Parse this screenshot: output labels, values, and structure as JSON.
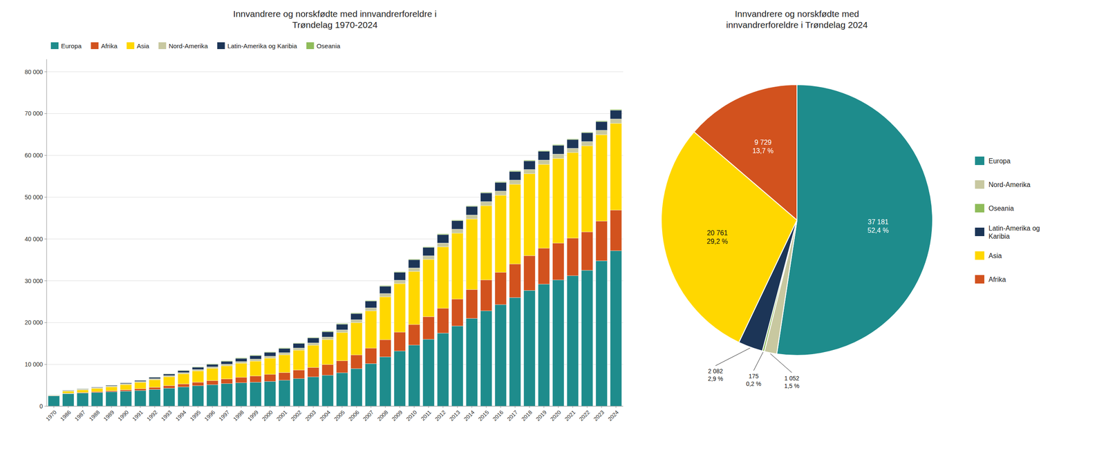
{
  "chart_data": [
    {
      "type": "bar",
      "title": "Innvandrere og norskfødte med innvandrerforeldre i\nTrøndelag 1970-2024",
      "stacked": true,
      "grid": true,
      "legend": "upper left",
      "categories": [
        "1970",
        "1986",
        "1987",
        "1988",
        "1989",
        "1990",
        "1991",
        "1992",
        "1993",
        "1994",
        "1995",
        "1996",
        "1997",
        "1998",
        "1999",
        "2000",
        "2001",
        "2002",
        "2003",
        "2004",
        "2005",
        "2006",
        "2007",
        "2008",
        "2009",
        "2010",
        "2011",
        "2012",
        "2013",
        "2014",
        "2015",
        "2016",
        "2017",
        "2018",
        "2019",
        "2020",
        "2021",
        "2022",
        "2023",
        "2024"
      ],
      "series": [
        {
          "name": "Europa",
          "color": "#1E8C8C",
          "values": [
            2500,
            3000,
            3150,
            3300,
            3450,
            3600,
            3750,
            4000,
            4300,
            4600,
            4900,
            5150,
            5400,
            5600,
            5750,
            5950,
            6200,
            6600,
            7000,
            7400,
            8000,
            9000,
            10200,
            11800,
            13200,
            14600,
            16000,
            17500,
            19200,
            21000,
            22800,
            24300,
            26000,
            27700,
            29200,
            30200,
            31200,
            32500,
            34800,
            37181
          ]
        },
        {
          "name": "Afrika",
          "color": "#D2521E",
          "values": [
            40,
            100,
            130,
            170,
            240,
            330,
            430,
            540,
            640,
            740,
            850,
            980,
            1120,
            1300,
            1480,
            1660,
            1860,
            2060,
            2280,
            2560,
            2860,
            3260,
            3680,
            4100,
            4520,
            4940,
            5420,
            5920,
            6420,
            6920,
            7420,
            7720,
            8020,
            8320,
            8600,
            8800,
            9000,
            9200,
            9480,
            9729
          ]
        },
        {
          "name": "Asia",
          "color": "#FFD700",
          "values": [
            80,
            500,
            640,
            780,
            950,
            1230,
            1510,
            1790,
            2090,
            2400,
            2700,
            2920,
            3140,
            3360,
            3580,
            3860,
            4240,
            4720,
            5300,
            5980,
            6760,
            7740,
            8920,
            10280,
            11620,
            12700,
            13700,
            14720,
            15780,
            16860,
            17760,
            18460,
            19060,
            19580,
            20060,
            20280,
            20460,
            20580,
            20680,
            20761
          ]
        },
        {
          "name": "Nord-Amerika",
          "color": "#C8C8A0",
          "values": [
            80,
            180,
            190,
            200,
            210,
            220,
            235,
            260,
            285,
            310,
            340,
            370,
            400,
            430,
            460,
            490,
            520,
            550,
            580,
            615,
            650,
            690,
            730,
            775,
            815,
            850,
            880,
            910,
            940,
            965,
            985,
            1000,
            1015,
            1025,
            1033,
            1038,
            1042,
            1045,
            1048,
            1052
          ]
        },
        {
          "name": "Latin-Amerika og Karibia",
          "color": "#1C3557",
          "values": [
            25,
            70,
            88,
            115,
            150,
            195,
            250,
            315,
            390,
            458,
            530,
            600,
            672,
            748,
            828,
            908,
            990,
            1072,
            1160,
            1255,
            1355,
            1475,
            1605,
            1735,
            1858,
            1940,
            1975,
            2000,
            2025,
            2038,
            2048,
            2055,
            2062,
            2067,
            2072,
            2075,
            2077,
            2078,
            2080,
            2082
          ]
        },
        {
          "name": "Oseania",
          "color": "#8FBC5A",
          "values": [
            15,
            35,
            40,
            45,
            55,
            62,
            72,
            82,
            92,
            102,
            112,
            122,
            132,
            142,
            147,
            150,
            153,
            156,
            158,
            161,
            163,
            165,
            166,
            167,
            168,
            169,
            170,
            171,
            172,
            173,
            174,
            174,
            175,
            175,
            175,
            175,
            175,
            175,
            175,
            175
          ]
        }
      ],
      "ylim": [
        0,
        83000
      ],
      "yticks": [
        0,
        {
          "value": 10000,
          "label": "10 000"
        },
        {
          "value": 20000,
          "label": "20 000"
        },
        {
          "value": 30000,
          "label": "30 000"
        },
        {
          "value": 40000,
          "label": "40 000"
        },
        {
          "value": 50000,
          "label": "50 000"
        },
        {
          "value": 60000,
          "label": "60 000"
        },
        {
          "value": 70000,
          "label": "70 000"
        },
        {
          "value": 80000,
          "label": "80 000"
        }
      ]
    },
    {
      "type": "pie",
      "title": "Innvandrere og norskfødte med\ninnvandrerforeldre i Trøndelag 2024",
      "legend": "right",
      "data_labels": true,
      "categories": [
        "Europa",
        "Nord-Amerika",
        "Oseania",
        "Latin-Amerika og\nKaribia",
        "Asia",
        "Afrika"
      ],
      "values": [
        37181,
        1052,
        175,
        2082,
        20761,
        9729
      ],
      "value_labels": [
        "37 181\n52,4 %",
        "1 052\n1,5 %",
        "175\n0,2 %",
        "2 082\n2,9 %",
        "20 761\n29,2 %",
        "9 729\n13,7 %"
      ],
      "colors": [
        "#1E8C8C",
        "#C8C8A0",
        "#8FBC5A",
        "#1C3557",
        "#FFD700",
        "#D2521E"
      ]
    }
  ]
}
